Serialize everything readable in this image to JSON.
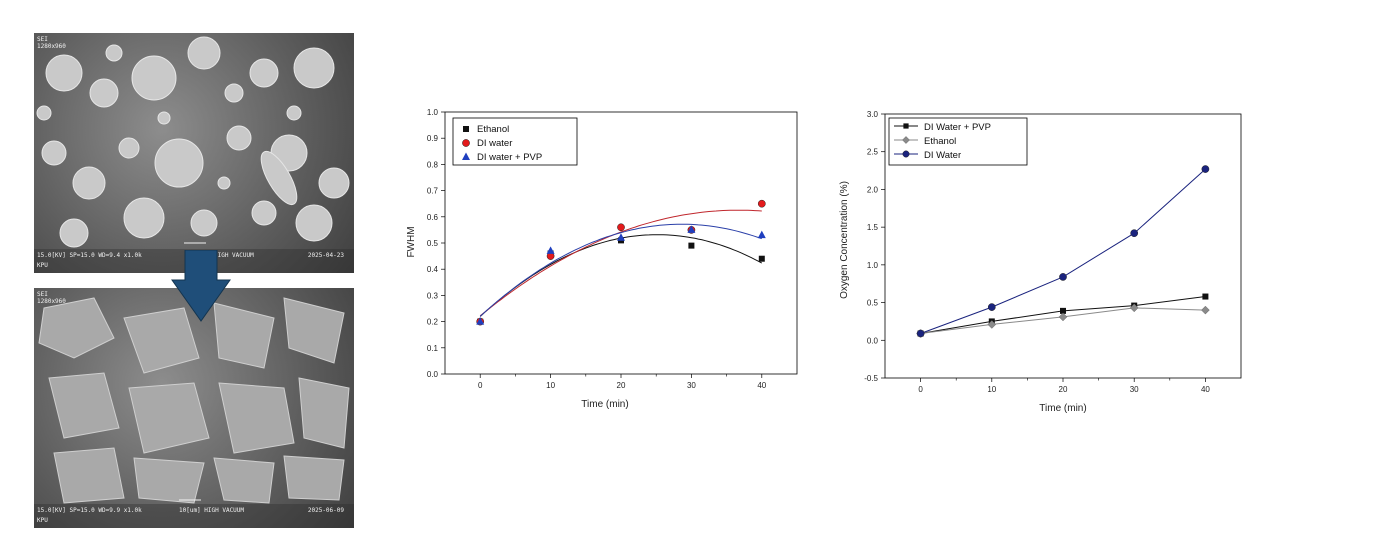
{
  "sem_images": [
    {
      "id": "sem-top",
      "header_line1": "SEI",
      "header_line2": "1280x960",
      "footer_left": "15.0[KV]  SP=15.0  WD=9.4  x1.0k",
      "footer_left2": "KPU",
      "footer_mid": "HIGH VACUUM",
      "footer_right": "2025-04-23"
    },
    {
      "id": "sem-bottom",
      "header_line1": "SEI",
      "header_line2": "1280x960",
      "footer_left": "15.0[KV]  SP=15.0  WD=9.9  x1.0k",
      "footer_left2": "KPU",
      "footer_mid": "10[um]    HIGH VACUUM",
      "footer_right": "2025-06-09"
    }
  ],
  "arrow": {
    "direction": "down",
    "color": "#1f4e79"
  },
  "chart_data": [
    {
      "type": "scatter",
      "xlabel": "Time (min)",
      "ylabel": "FWHM",
      "xlim": [
        -5,
        45
      ],
      "ylim": [
        0.0,
        1.0
      ],
      "xticks": [
        0,
        10,
        20,
        30,
        40
      ],
      "yticks": [
        "0.0",
        "0.1",
        "0.2",
        "0.3",
        "0.4",
        "0.5",
        "0.6",
        "0.7",
        "0.8",
        "0.9",
        "1.0"
      ],
      "legend_position": "top-left",
      "series": [
        {
          "name": "Ethanol",
          "marker": "square",
          "color": "#111111",
          "x": [
            0,
            10,
            20,
            30,
            40
          ],
          "y": [
            0.2,
            0.46,
            0.51,
            0.49,
            0.44
          ],
          "fit": {
            "degree": 2,
            "color": "#111111"
          }
        },
        {
          "name": "DI water",
          "marker": "circle",
          "color": "#e31a1c",
          "x": [
            0,
            10,
            20,
            30,
            40
          ],
          "y": [
            0.2,
            0.45,
            0.56,
            0.55,
            0.65
          ],
          "fit": {
            "degree": 2,
            "color": "#c0272d"
          }
        },
        {
          "name": "DI water + PVP",
          "marker": "triangle",
          "color": "#1f3fbf",
          "x": [
            0,
            10,
            20,
            30,
            40
          ],
          "y": [
            0.2,
            0.47,
            0.52,
            0.55,
            0.53
          ],
          "fit": {
            "degree": 2,
            "color": "#2a3fa8"
          }
        }
      ]
    },
    {
      "type": "line",
      "xlabel": "Time (min)",
      "ylabel": "Oxygen Concentration (%)",
      "xlim": [
        -5,
        45
      ],
      "ylim": [
        -0.5,
        3.0
      ],
      "xticks": [
        0,
        10,
        20,
        30,
        40
      ],
      "yticks": [
        "-0.5",
        "0.0",
        "0.5",
        "1.0",
        "1.5",
        "2.0",
        "2.5",
        "3.0"
      ],
      "legend_position": "top-left",
      "series": [
        {
          "name": "DI Water + PVP",
          "marker": "square",
          "color": "#111111",
          "x": [
            0,
            10,
            20,
            30,
            40
          ],
          "y": [
            0.09,
            0.25,
            0.39,
            0.46,
            0.58
          ]
        },
        {
          "name": "Ethanol",
          "marker": "diamond",
          "color": "#8a8a8a",
          "x": [
            0,
            10,
            20,
            30,
            40
          ],
          "y": [
            0.09,
            0.21,
            0.31,
            0.43,
            0.4
          ]
        },
        {
          "name": "DI Water",
          "marker": "circle",
          "color": "#1a237e",
          "x": [
            0,
            10,
            20,
            30,
            40
          ],
          "y": [
            0.09,
            0.44,
            0.84,
            1.42,
            2.27
          ]
        }
      ]
    }
  ]
}
